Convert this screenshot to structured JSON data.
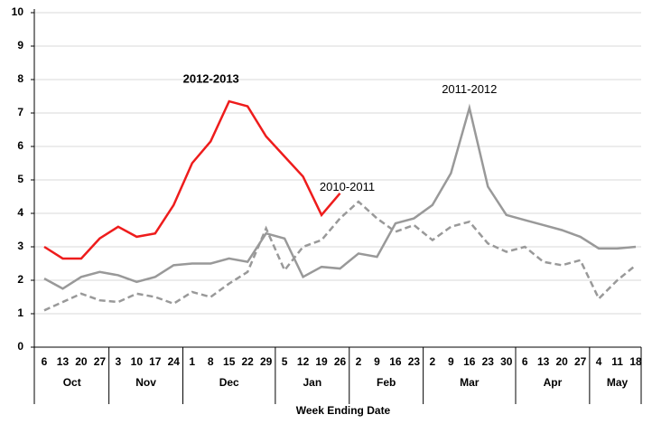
{
  "chart_data": {
    "type": "line",
    "categories": [
      "6",
      "13",
      "20",
      "27",
      "3",
      "10",
      "17",
      "24",
      "1",
      "8",
      "15",
      "22",
      "29",
      "5",
      "12",
      "19",
      "26",
      "2",
      "9",
      "16",
      "23",
      "2",
      "9",
      "16",
      "23",
      "30",
      "6",
      "13",
      "20",
      "27",
      "4",
      "11",
      "18"
    ],
    "month_groups": [
      {
        "label": "Oct",
        "weeks": 4
      },
      {
        "label": "Nov",
        "weeks": 4
      },
      {
        "label": "Dec",
        "weeks": 5
      },
      {
        "label": "Jan",
        "weeks": 4
      },
      {
        "label": "Feb",
        "weeks": 4
      },
      {
        "label": "Mar",
        "weeks": 5
      },
      {
        "label": "Apr",
        "weeks": 4
      },
      {
        "label": "May",
        "weeks": 3
      }
    ],
    "xlabel": "Week Ending Date",
    "ylim": [
      0,
      10
    ],
    "yticks": [
      0,
      1,
      2,
      3,
      4,
      5,
      6,
      7,
      8,
      9,
      10
    ],
    "grid": true,
    "series": [
      {
        "name": "2012-2013",
        "color": "#ee1c1c",
        "dash": false,
        "values": [
          3.0,
          2.65,
          2.65,
          3.25,
          3.6,
          3.3,
          3.4,
          4.25,
          5.5,
          6.15,
          7.35,
          7.2,
          6.3,
          5.7,
          5.1,
          3.95,
          4.6,
          null,
          null,
          null,
          null,
          null,
          null,
          null,
          null,
          null,
          null,
          null,
          null,
          null,
          null,
          null,
          null
        ]
      },
      {
        "name": "2011-2012",
        "color": "#999999",
        "dash": false,
        "values": [
          2.05,
          1.75,
          2.1,
          2.25,
          2.15,
          1.95,
          2.1,
          2.45,
          2.5,
          2.5,
          2.65,
          2.55,
          3.4,
          3.25,
          2.1,
          2.4,
          2.35,
          2.8,
          2.7,
          3.7,
          3.85,
          4.25,
          5.2,
          7.15,
          4.8,
          3.95,
          3.8,
          3.65,
          3.5,
          3.3,
          2.95,
          2.95,
          3.0
        ]
      },
      {
        "name": "2010-2011",
        "color": "#999999",
        "dash": true,
        "values": [
          1.1,
          1.35,
          1.6,
          1.4,
          1.35,
          1.6,
          1.5,
          1.3,
          1.65,
          1.5,
          1.9,
          2.25,
          3.55,
          2.3,
          3.0,
          3.2,
          3.85,
          4.35,
          3.85,
          3.45,
          3.65,
          3.2,
          3.6,
          3.75,
          3.1,
          2.85,
          3.0,
          2.55,
          2.45,
          2.6,
          1.45,
          2.0,
          2.45
        ]
      }
    ]
  }
}
